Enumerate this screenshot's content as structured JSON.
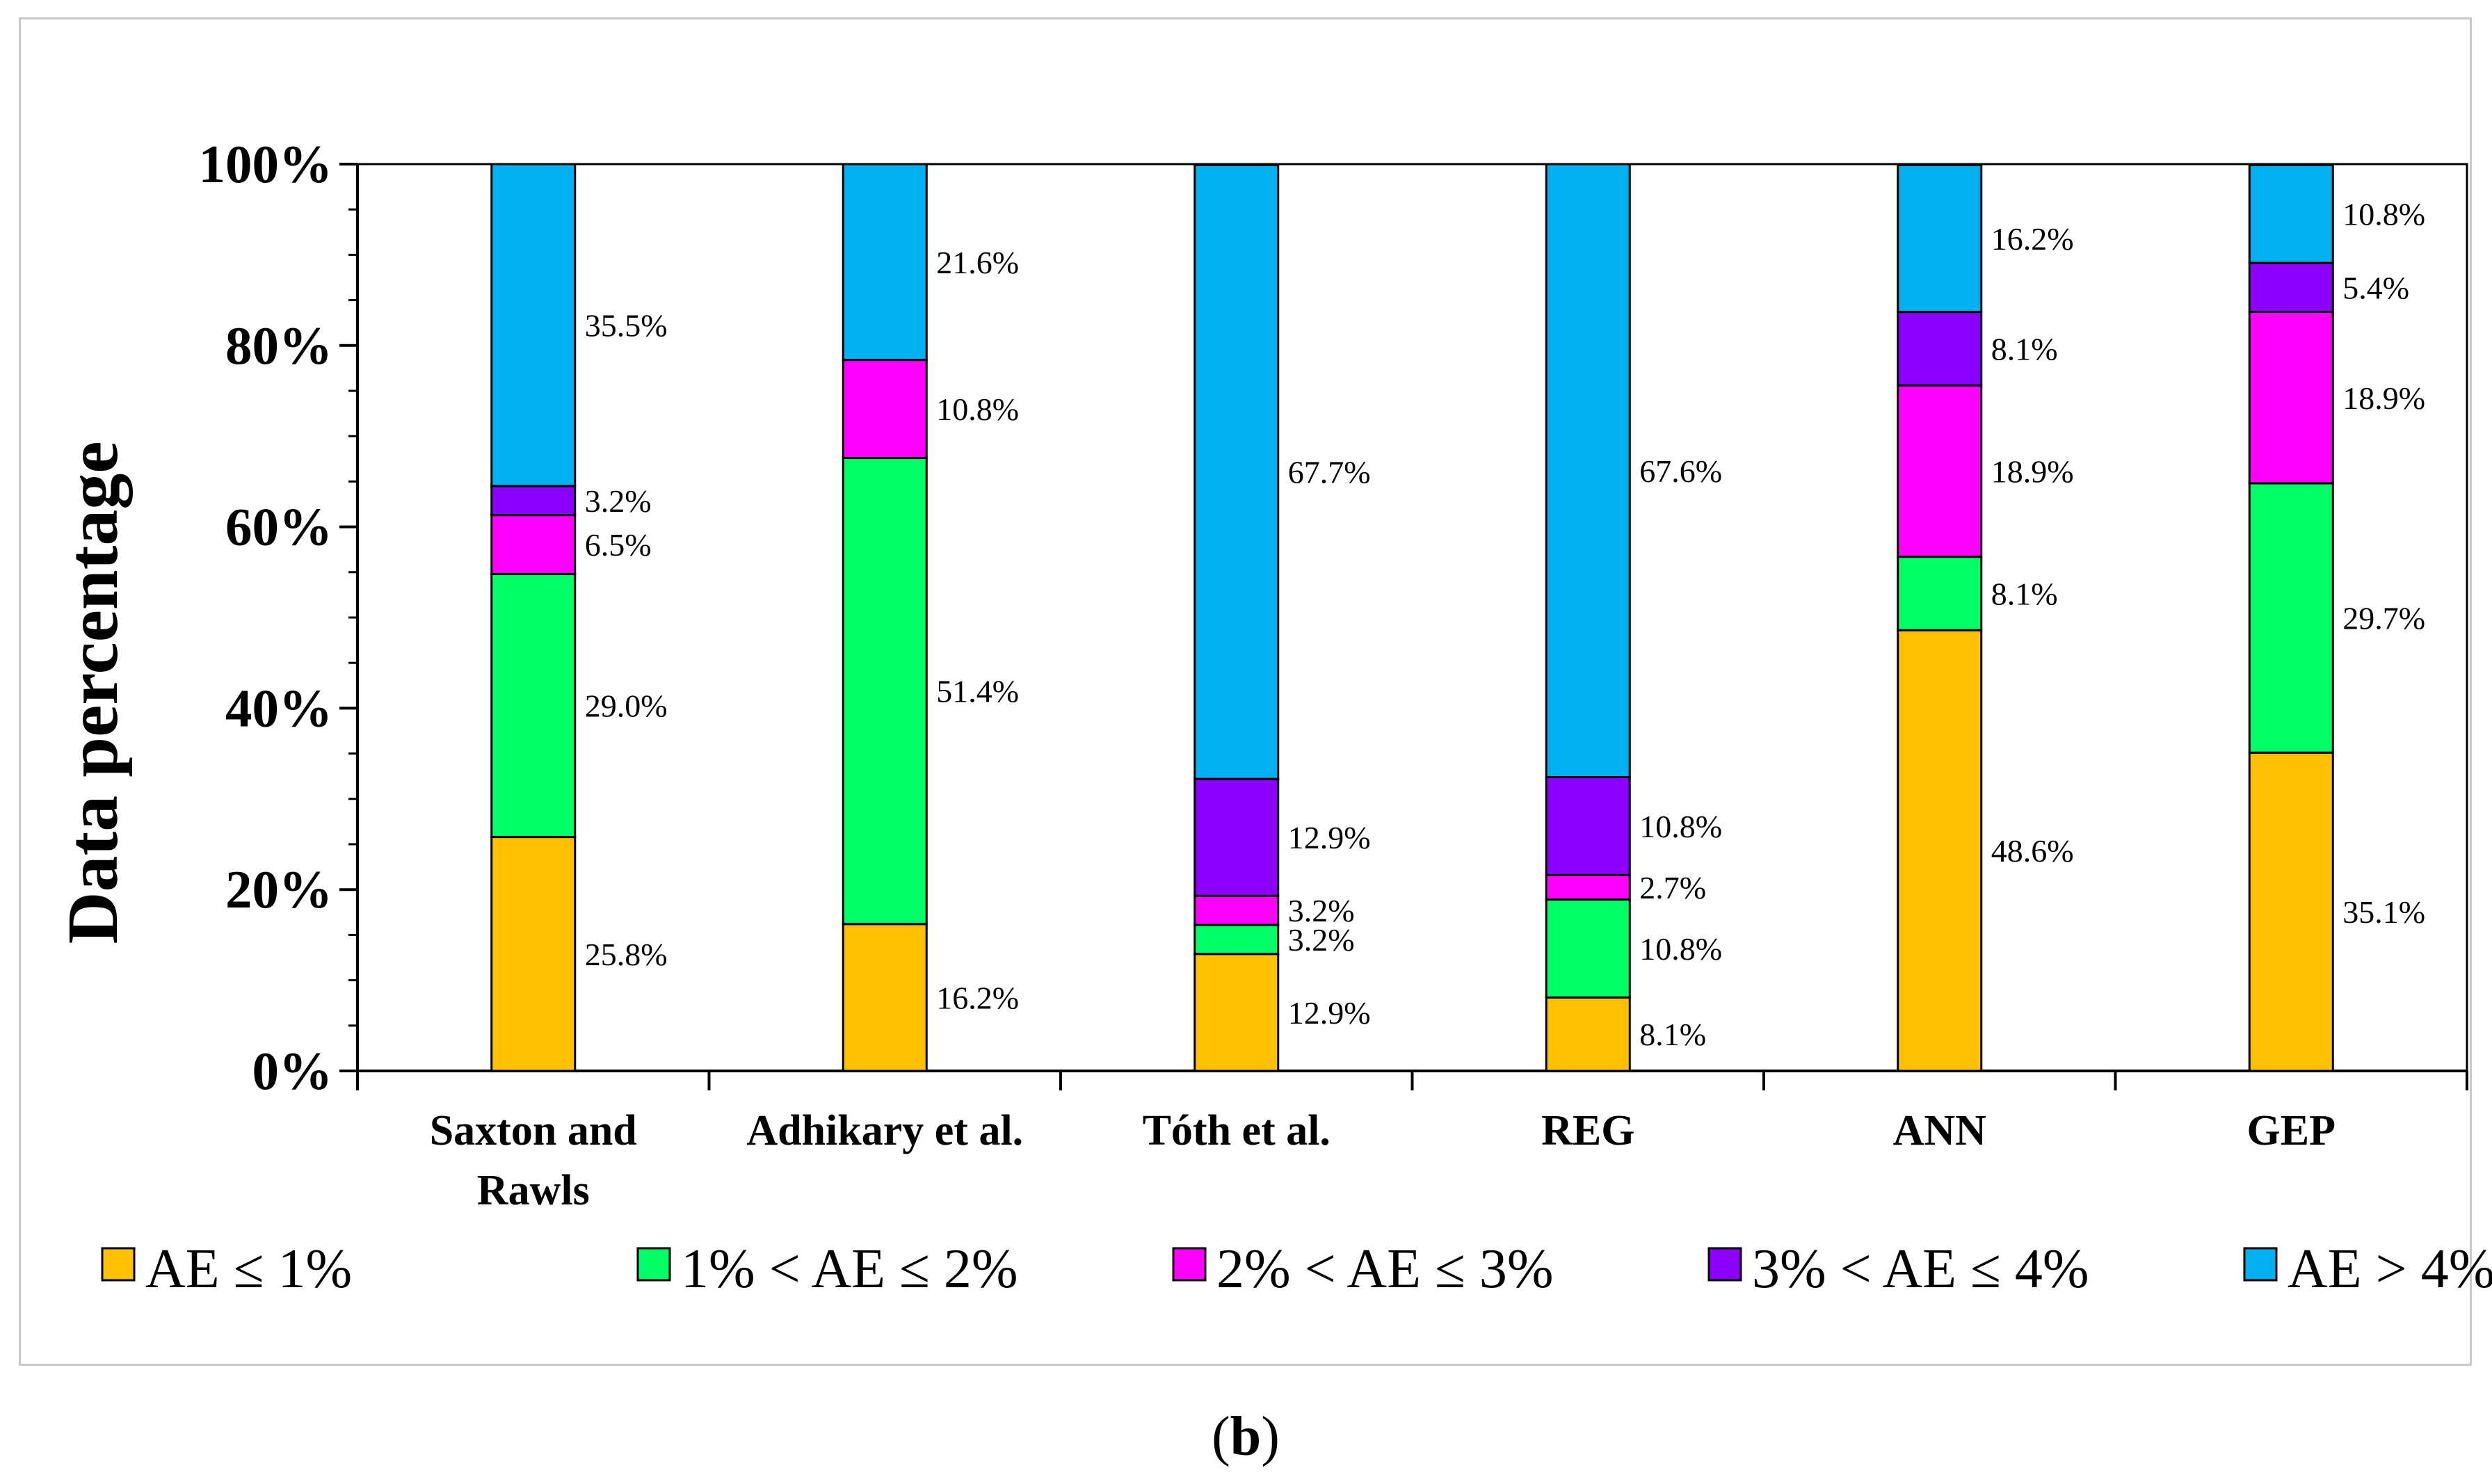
{
  "chart_data": {
    "type": "bar",
    "stacked": true,
    "ylabel": "Data percentage",
    "xlabel": "",
    "ylim": [
      0,
      100
    ],
    "yticks": [
      "0%",
      "20%",
      "40%",
      "60%",
      "80%",
      "100%"
    ],
    "ytick_values": [
      0,
      20,
      40,
      60,
      80,
      100
    ],
    "categories": [
      "Saxton and\nRawls",
      "Adhikary et al.",
      "Tóth et al.",
      "REG",
      "ANN",
      "GEP"
    ],
    "series": [
      {
        "name": "AE ≤ 1%",
        "color": "#FFC000",
        "values": [
          25.8,
          16.2,
          12.9,
          8.1,
          48.6,
          35.1
        ],
        "labels": [
          "25.8%",
          "16.2%",
          "12.9%",
          "8.1%",
          "48.6%",
          "35.1%"
        ]
      },
      {
        "name": "1% < AE ≤ 2%",
        "color": "#00FF66",
        "values": [
          29.0,
          51.4,
          3.2,
          10.8,
          8.1,
          29.7
        ],
        "labels": [
          "29.0%",
          "51.4%",
          "3.2%",
          "10.8%",
          "8.1%",
          "29.7%"
        ]
      },
      {
        "name": "2% < AE ≤ 3%",
        "color": "#FF00FF",
        "values": [
          6.5,
          10.8,
          3.2,
          2.7,
          18.9,
          18.9
        ],
        "labels": [
          "6.5%",
          "10.8%",
          "3.2%",
          "2.7%",
          "18.9%",
          "18.9%"
        ]
      },
      {
        "name": "3% < AE ≤ 4%",
        "color": "#8B00FF",
        "values": [
          3.2,
          0,
          12.9,
          10.8,
          8.1,
          5.4
        ],
        "labels": [
          "3.2%",
          "",
          "12.9%",
          "10.8%",
          "8.1%",
          "5.4%"
        ]
      },
      {
        "name": "AE > 4%",
        "color": "#00B0F0",
        "values": [
          35.5,
          21.6,
          67.7,
          67.6,
          16.2,
          10.8
        ],
        "labels": [
          "35.5%",
          "21.6%",
          "67.7%",
          "67.6%",
          "16.2%",
          "10.8%"
        ]
      }
    ],
    "legend_position": "bottom"
  },
  "caption": {
    "open": "(",
    "letter": "b",
    "close": ")"
  }
}
